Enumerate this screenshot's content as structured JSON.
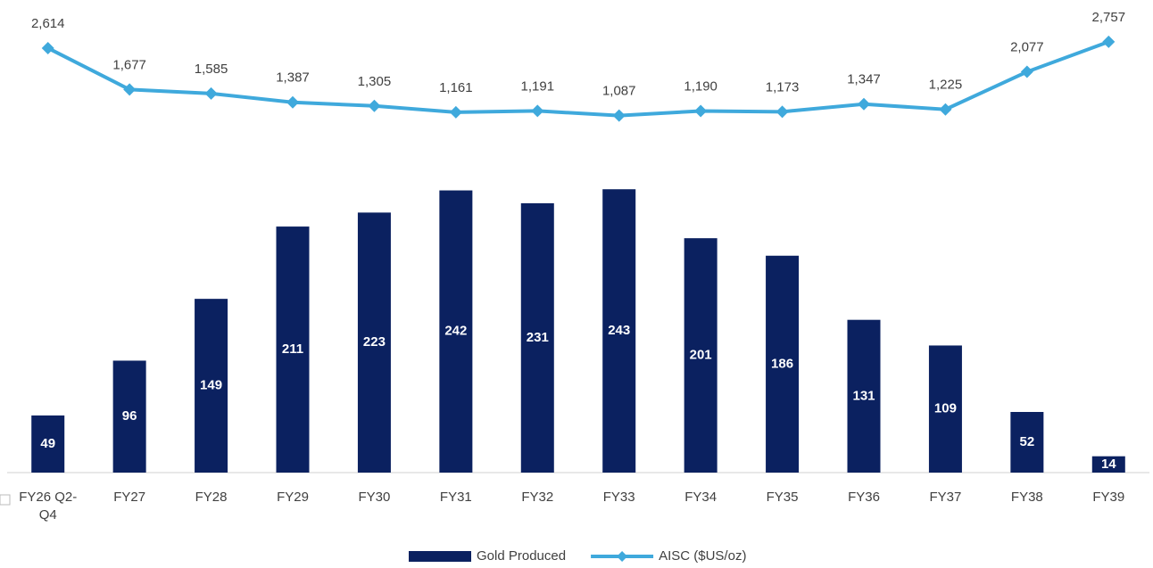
{
  "chart_data": {
    "type": "bar-line",
    "categories": [
      "FY26 Q2-Q4",
      "FY27",
      "FY28",
      "FY29",
      "FY30",
      "FY31",
      "FY32",
      "FY33",
      "FY34",
      "FY35",
      "FY36",
      "FY37",
      "FY38",
      "FY39"
    ],
    "series": [
      {
        "name": "Gold Produced",
        "type": "bar",
        "color": "#0b2160",
        "values": [
          49,
          96,
          149,
          211,
          223,
          242,
          231,
          243,
          201,
          186,
          131,
          109,
          52,
          14
        ]
      },
      {
        "name": "AISC ($US/oz)",
        "type": "line",
        "axis": "y2",
        "color": "#3fa9dc",
        "values": [
          2614,
          1677,
          1585,
          1387,
          1305,
          1161,
          1191,
          1087,
          1190,
          1173,
          1347,
          1225,
          2077,
          2757
        ],
        "value_labels": [
          "2,614",
          "1,677",
          "1,585",
          "1,387",
          "1,305",
          "1,161",
          "1,191",
          "1,087",
          "1,190",
          "1,173",
          "1,347",
          "1,225",
          "2,077",
          "2,757"
        ]
      }
    ],
    "ylim": [
      0,
      390
    ],
    "y2lim": [
      -7000,
      3300
    ],
    "legend": "bottom"
  }
}
